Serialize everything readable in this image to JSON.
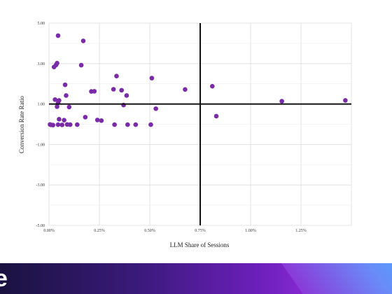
{
  "chart_data": {
    "type": "scatter",
    "xlabel": "LLM Share of Sessions",
    "ylabel": "Conversion Rate Ratio",
    "xlim": [
      0,
      1.5
    ],
    "ylim": [
      -5,
      5
    ],
    "x_ticks": [
      0,
      0.25,
      0.5,
      0.75,
      1.0,
      1.25
    ],
    "x_tick_labels": [
      "0.00%",
      "0.25%",
      "0.50%",
      "0.75%",
      "1.00%",
      "1.25%"
    ],
    "y_ticks": [
      5,
      3,
      1,
      -1,
      -3,
      -5
    ],
    "y_tick_labels": [
      "5.00",
      "3.00",
      "1.00",
      "-1.00",
      "-3.00",
      "-5.00"
    ],
    "reference_lines": {
      "x": 0.75,
      "y": 1.0
    },
    "grid": true,
    "point_color": "#7a2ca8",
    "points": [
      {
        "x": 0.005,
        "y": -0.01
      },
      {
        "x": 0.01,
        "y": -0.03
      },
      {
        "x": 0.02,
        "y": -0.04
      },
      {
        "x": 0.025,
        "y": 2.83
      },
      {
        "x": 0.035,
        "y": 2.93
      },
      {
        "x": 0.04,
        "y": 3.02
      },
      {
        "x": 0.045,
        "y": 4.38
      },
      {
        "x": 0.03,
        "y": 1.22
      },
      {
        "x": 0.04,
        "y": 0.87
      },
      {
        "x": 0.045,
        "y": 1.05
      },
      {
        "x": 0.05,
        "y": 1.18
      },
      {
        "x": 0.05,
        "y": 0.25
      },
      {
        "x": 0.045,
        "y": -0.02
      },
      {
        "x": 0.065,
        "y": -0.03
      },
      {
        "x": 0.075,
        "y": 0.2
      },
      {
        "x": 0.08,
        "y": 1.95
      },
      {
        "x": 0.085,
        "y": 1.42
      },
      {
        "x": 0.09,
        "y": -0.01
      },
      {
        "x": 0.1,
        "y": 0.85
      },
      {
        "x": 0.105,
        "y": -0.02
      },
      {
        "x": 0.14,
        "y": -0.02
      },
      {
        "x": 0.16,
        "y": 2.92
      },
      {
        "x": 0.17,
        "y": 4.12
      },
      {
        "x": 0.18,
        "y": 0.35
      },
      {
        "x": 0.21,
        "y": 1.62
      },
      {
        "x": 0.225,
        "y": 1.63
      },
      {
        "x": 0.24,
        "y": 0.21
      },
      {
        "x": 0.26,
        "y": 0.18
      },
      {
        "x": 0.32,
        "y": 1.73
      },
      {
        "x": 0.325,
        "y": -0.02
      },
      {
        "x": 0.335,
        "y": 2.38
      },
      {
        "x": 0.36,
        "y": 1.68
      },
      {
        "x": 0.37,
        "y": 0.95
      },
      {
        "x": 0.385,
        "y": 1.42
      },
      {
        "x": 0.39,
        "y": -0.02
      },
      {
        "x": 0.43,
        "y": -0.02
      },
      {
        "x": 0.505,
        "y": -0.02
      },
      {
        "x": 0.51,
        "y": 2.28
      },
      {
        "x": 0.53,
        "y": 0.77
      },
      {
        "x": 0.675,
        "y": 1.72
      },
      {
        "x": 0.81,
        "y": 1.88
      },
      {
        "x": 0.83,
        "y": 0.4
      },
      {
        "x": 1.155,
        "y": 1.14
      },
      {
        "x": 1.47,
        "y": 1.18
      }
    ]
  },
  "footer": {
    "logo_text": "e"
  }
}
